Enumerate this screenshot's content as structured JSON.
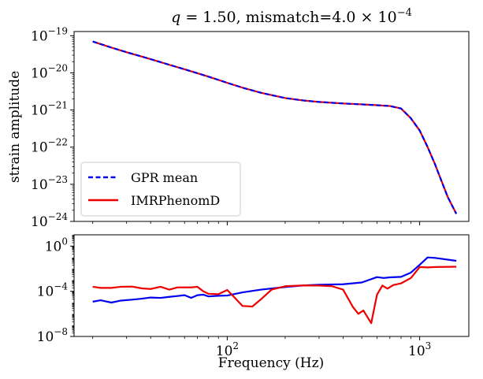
{
  "chart_data": [
    {
      "type": "line",
      "title": "q = 1.50, mismatch=4.0 × 10^-4",
      "title_parts": {
        "variable": "q",
        "eq_value": " = 1.50, mismatch=4.0 × 10",
        "exponent": "−4"
      },
      "xlabel": "",
      "ylabel": "strain amplitude",
      "xscale": "log",
      "yscale": "log",
      "xlim": [
        16,
        1800
      ],
      "ylim": [
        1e-24,
        1.3e-19
      ],
      "x_ticks": [
        {
          "value": 100,
          "base": "10",
          "exp": "2"
        },
        {
          "value": 1000,
          "base": "10",
          "exp": "3"
        }
      ],
      "y_ticks": [
        {
          "value": 1e-19,
          "base": "10",
          "exp": "−19"
        },
        {
          "value": 1e-20,
          "base": "10",
          "exp": "−20"
        },
        {
          "value": 1e-21,
          "base": "10",
          "exp": "−21"
        },
        {
          "value": 1e-22,
          "base": "10",
          "exp": "−22"
        },
        {
          "value": 1e-23,
          "base": "10",
          "exp": "−23"
        },
        {
          "value": 1e-24,
          "base": "10",
          "exp": "−24"
        }
      ],
      "grid": false,
      "legend_position": "lower-left",
      "x": [
        20,
        25,
        30,
        40,
        50,
        60,
        70,
        80,
        100,
        120,
        150,
        200,
        250,
        300,
        400,
        500,
        600,
        700,
        800,
        900,
        1000,
        1100,
        1200,
        1300,
        1400,
        1550
      ],
      "series": [
        {
          "name": "GPR mean",
          "color": "#0000ee",
          "dash": "6,3.5",
          "values": [
            7e-20,
            4.8e-20,
            3.6e-20,
            2.35e-20,
            1.65e-20,
            1.25e-20,
            9.8e-21,
            7.9e-21,
            5.4e-21,
            4e-21,
            2.9e-21,
            2.1e-21,
            1.8e-21,
            1.65e-21,
            1.5e-21,
            1.42e-21,
            1.35e-21,
            1.28e-21,
            1.1e-21,
            6e-22,
            2.8e-22,
            1e-22,
            3.5e-23,
            1.2e-23,
            4.5e-24,
            1.6e-24
          ]
        },
        {
          "name": "IMRPhenomD",
          "color": "#ee0000",
          "dash": "",
          "values": [
            7e-20,
            4.8e-20,
            3.6e-20,
            2.35e-20,
            1.65e-20,
            1.25e-20,
            9.8e-21,
            7.9e-21,
            5.4e-21,
            4e-21,
            2.9e-21,
            2.1e-21,
            1.8e-21,
            1.65e-21,
            1.5e-21,
            1.42e-21,
            1.35e-21,
            1.28e-21,
            1.1e-21,
            6e-22,
            2.8e-22,
            1e-22,
            3.5e-23,
            1.2e-23,
            4.5e-24,
            1.6e-24
          ]
        }
      ]
    },
    {
      "type": "line",
      "title": "",
      "xlabel": "Frequency (Hz)",
      "ylabel": "",
      "xscale": "log",
      "yscale": "log",
      "xlim": [
        16,
        1800
      ],
      "ylim": [
        1e-08,
        10
      ],
      "x_ticks": [
        {
          "value": 100,
          "base": "10",
          "exp": "2"
        },
        {
          "value": 1000,
          "base": "10",
          "exp": "3"
        }
      ],
      "y_ticks": [
        {
          "value": 1,
          "base": "10",
          "exp": "0"
        },
        {
          "value": 0.0001,
          "base": "10",
          "exp": "−4"
        },
        {
          "value": 1e-08,
          "base": "10",
          "exp": "−8"
        }
      ],
      "grid": false,
      "series": [
        {
          "color": "#0000ee",
          "x": [
            20,
            22,
            25,
            28,
            32,
            36,
            40,
            45,
            50,
            55,
            60,
            65,
            70,
            75,
            80,
            90,
            100,
            120,
            150,
            200,
            250,
            300,
            400,
            500,
            600,
            650,
            700,
            800,
            900,
            1000,
            1100,
            1200,
            1550
          ],
          "values": [
            1.2e-05,
            1.6e-05,
            1e-05,
            1.5e-05,
            1.8e-05,
            2.2e-05,
            2.8e-05,
            2.6e-05,
            3.2e-05,
            3.8e-05,
            4.5e-05,
            2.6e-05,
            4.5e-05,
            5e-05,
            3.5e-05,
            4e-05,
            4.2e-05,
            8e-05,
            0.00014,
            0.00024,
            0.00033,
            0.00038,
            0.00042,
            0.0006,
            0.0018,
            0.0015,
            0.0017,
            0.0019,
            0.0045,
            0.022,
            0.1,
            0.09,
            0.05
          ]
        },
        {
          "color": "#ee0000",
          "x": [
            20,
            22,
            25,
            28,
            32,
            36,
            40,
            45,
            50,
            55,
            60,
            65,
            70,
            75,
            80,
            90,
            100,
            110,
            120,
            135,
            150,
            170,
            200,
            250,
            300,
            350,
            400,
            450,
            480,
            510,
            560,
            600,
            640,
            680,
            730,
            800,
            900,
            1000,
            1100,
            1200,
            1550
          ],
          "values": [
            0.00025,
            0.0002,
            0.0002,
            0.00025,
            0.00026,
            0.00018,
            0.00016,
            0.00025,
            0.00014,
            0.00022,
            0.00022,
            0.00022,
            0.00025,
            0.0001,
            6e-05,
            5.5e-05,
            0.00013,
            2.4e-05,
            5e-06,
            4.5e-06,
            2e-05,
            0.00014,
            0.00028,
            0.00033,
            0.00032,
            0.00028,
            0.00014,
            4e-06,
            1e-06,
            2e-06,
            1.5e-07,
            5e-05,
            0.00032,
            0.00017,
            0.00036,
            0.0005,
            0.0015,
            0.014,
            0.013,
            0.014,
            0.015
          ]
        }
      ]
    }
  ]
}
